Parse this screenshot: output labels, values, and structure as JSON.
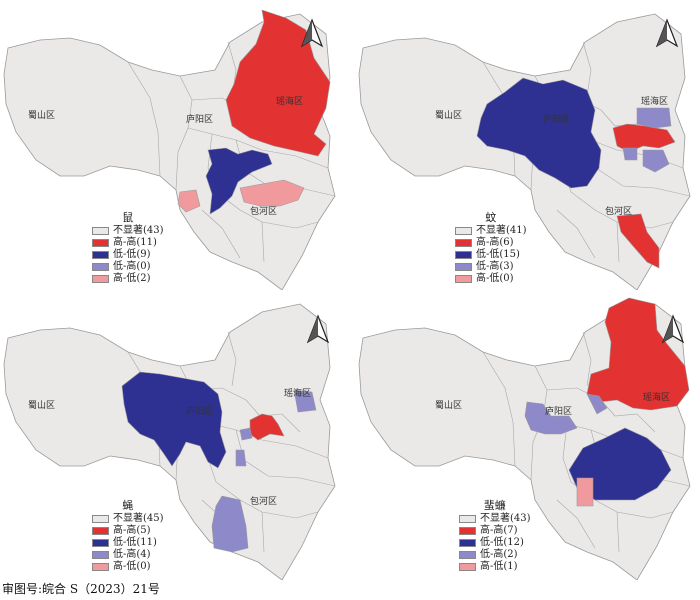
{
  "colors": {
    "not_significant": "#ebe8e8",
    "high_high": "#e23232",
    "low_low": "#2e3192",
    "low_high": "#8e89c8",
    "high_low": "#f19a9e",
    "border": "#9a9a9a"
  },
  "districts": {
    "shushan": "蜀山区",
    "luyang": "庐阳区",
    "yaohai": "瑶海区",
    "baohe": "包河区"
  },
  "panels": [
    {
      "title": "鼠",
      "legend": [
        "不显著(43)",
        "高-高(11)",
        "低-低(9)",
        "低-高(0)",
        "高-低(2)"
      ]
    },
    {
      "title": "蚊",
      "legend": [
        "不显著(41)",
        "高-高(6)",
        "低-低(15)",
        "低-高(3)",
        "高-低(0)"
      ]
    },
    {
      "title": "蝇",
      "legend": [
        "不显著(45)",
        "高-高(5)",
        "低-低(11)",
        "低-高(4)",
        "高-低(0)"
      ]
    },
    {
      "title": "蜚蠊",
      "legend": [
        "不显著(43)",
        "高-高(7)",
        "低-低(12)",
        "低-高(2)",
        "高-低(1)"
      ]
    }
  ],
  "caption": "审图号:皖合 S（2023）21号",
  "icons": [
    "north-arrow-icon"
  ]
}
